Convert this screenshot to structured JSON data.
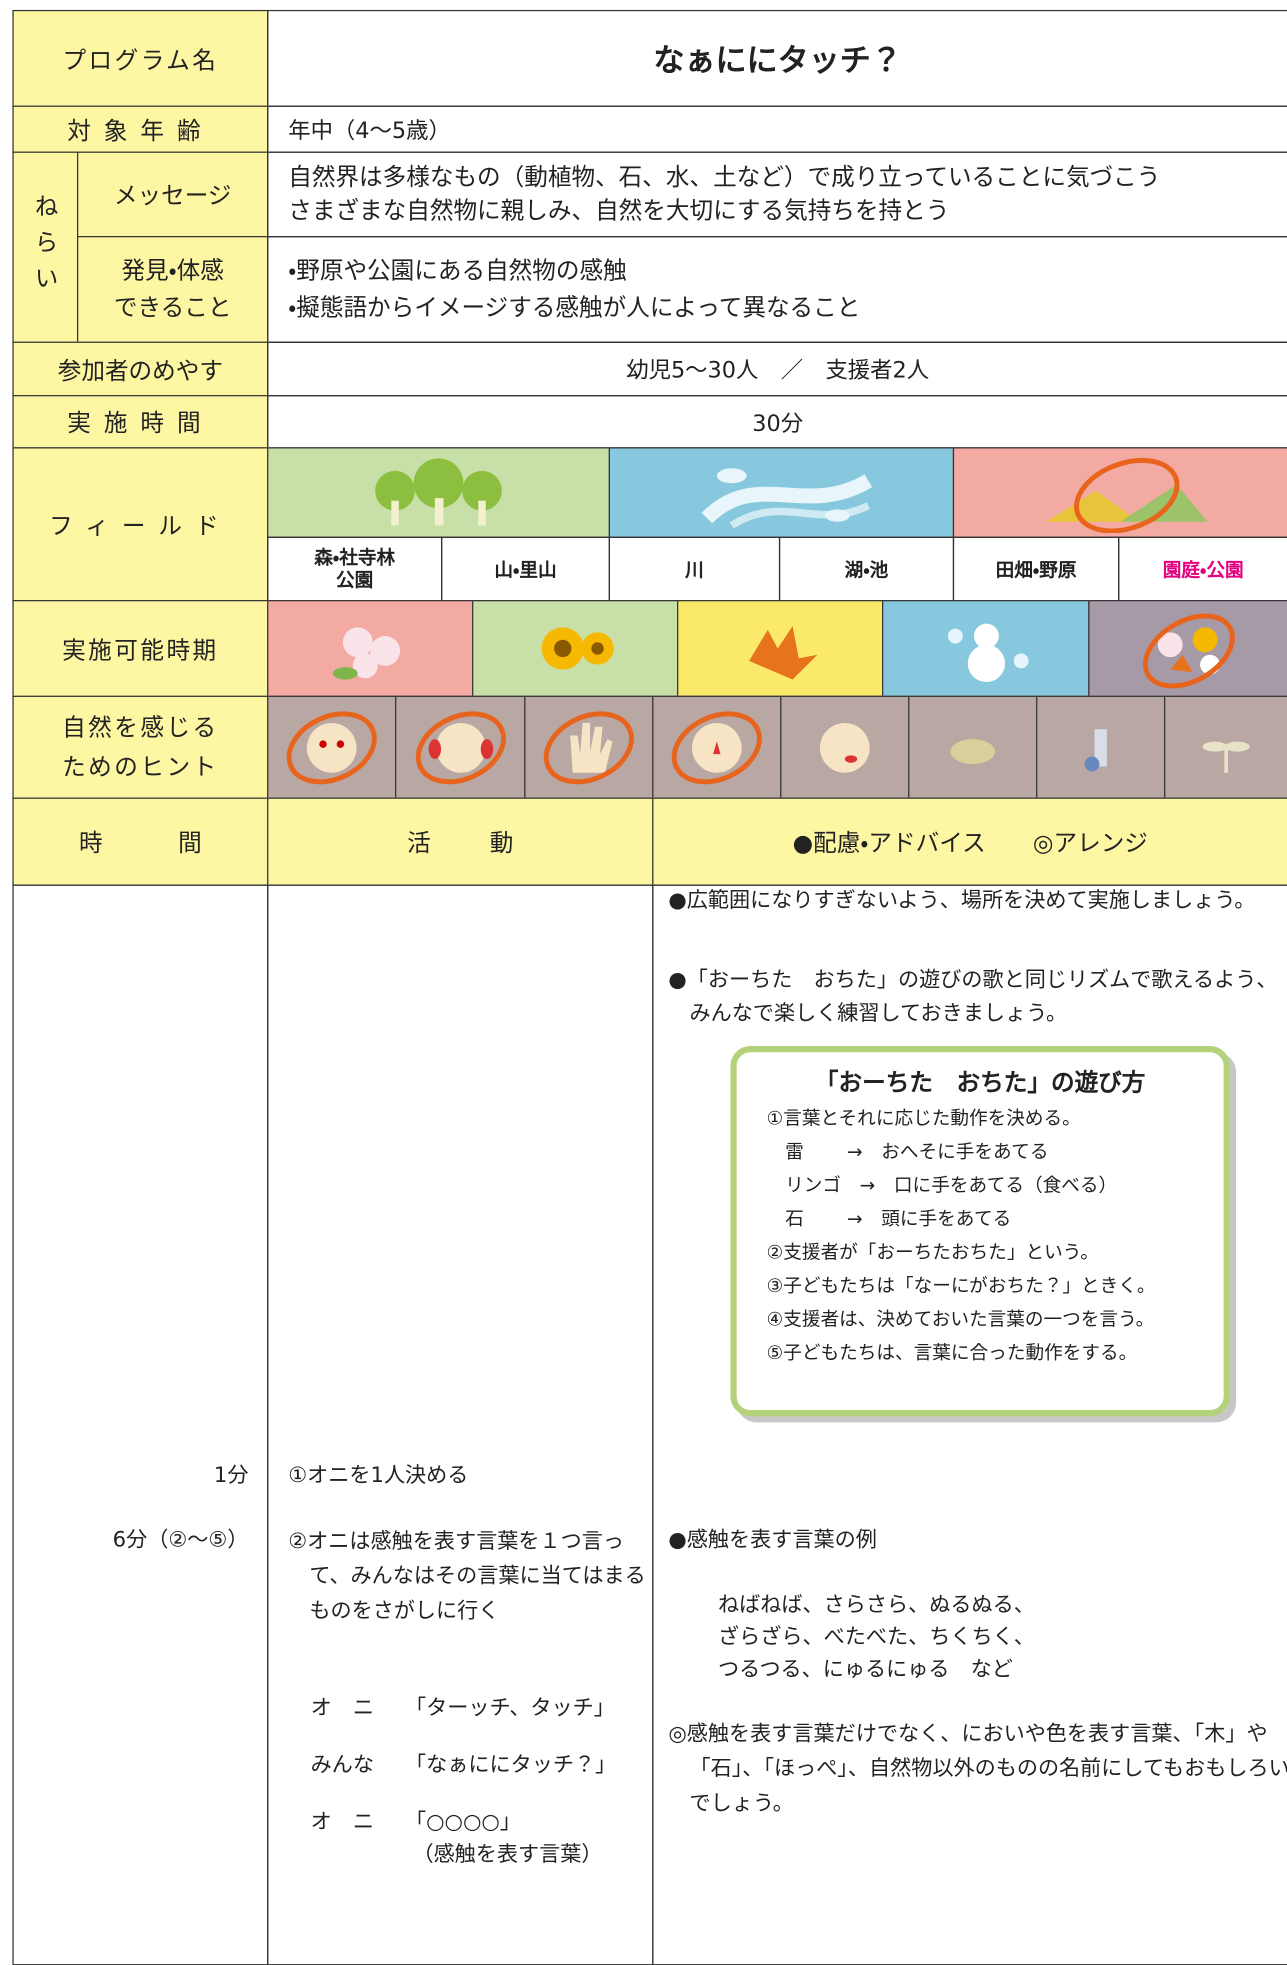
{
  "program": {
    "label": "プログラム名",
    "title": "なぁににタッチ？"
  },
  "age": {
    "label": "対象年齢",
    "value": "年中（4〜5歳）"
  },
  "aims": {
    "label": "ねらい",
    "message": {
      "label": "メッセージ",
      "lines": [
        "自然界は多様なもの（動植物、石、水、土など）で成り立っていることに気づこう",
        "さまざまな自然物に親しみ、自然を大切にする気持ちを持とう"
      ]
    },
    "discovery": {
      "label": [
        "発見・体感",
        "できること"
      ],
      "lines": [
        "・野原や公園にある自然物の感触",
        "・擬態語からイメージする感触が人によって異なること"
      ]
    }
  },
  "participants": {
    "label": "参加者のめやす",
    "value": "幼児5〜30人　／　支援者2人"
  },
  "duration": {
    "label": "実施時間",
    "value": "30分"
  },
  "field": {
    "label": "フィールド",
    "options": [
      "森・社寺林公園",
      "山・里山",
      "川",
      "湖・池",
      "田畑・野原",
      "園庭・公園"
    ]
  },
  "season": {
    "label": "実施可能時期"
  },
  "hints": {
    "label": [
      "自然を感じる",
      "ためのヒント"
    ]
  },
  "schedule": {
    "headers": [
      "時間",
      "活動",
      "●配慮・アドバイス　　◎アレンジ"
    ],
    "notes": [
      "●広範囲になりすぎないよう、場所を決めて実施しましょう。",
      "●「おーちた　おちた」の遊びの歌と同じリズムで歌えるよう、みんなで楽しく練習しておきましょう。"
    ],
    "box": {
      "title": "「おーちた　おちた」の遊び方",
      "lines": [
        "①言葉とそれに応じた動作を決める。",
        "　雷　　 →　おへそに手をあてる",
        "　リンゴ　→　口に手をあてる（食べる）",
        "　石　　 →　頭に手をあてる",
        "②支援者が「おーちたおちた」という。",
        "③子どもたちは「なーにがおちた？」ときく。",
        "④支援者は、決めておいた言葉の一つを言う。",
        "⑤子どもたちは、言葉に合った動作をする。"
      ]
    },
    "steps": [
      {
        "time": "1分",
        "activity": "①オニを1人決める"
      },
      {
        "time": "6分（②〜⑤）",
        "activity": "②オニは感触を表す言葉を１つ言って、みんなはその言葉に当てはまるものをさがしに行く"
      }
    ],
    "dialogue": [
      {
        "speaker": "オ　ニ",
        "line": "「ターッチ、タッチ」"
      },
      {
        "speaker": "みんな",
        "line": "「なぁににタッチ？」"
      },
      {
        "speaker": "オ　ニ",
        "line": "「○○○○」"
      }
    ],
    "dialogue_note": "（感触を表す言葉）",
    "example_title": "●感触を表す言葉の例",
    "examples": [
      "ねばねば、さらさら、ぬるぬる、",
      "ざらざら、べたべた、ちくちく、",
      "つるつる、にゅるにゅる　など"
    ],
    "arrange": "◎感触を表す言葉だけでなく、においや色を表す言葉、「木」や「石」、「ほっぺ」、自然物以外のものの名前にしてもおもしろいでしょう。"
  }
}
